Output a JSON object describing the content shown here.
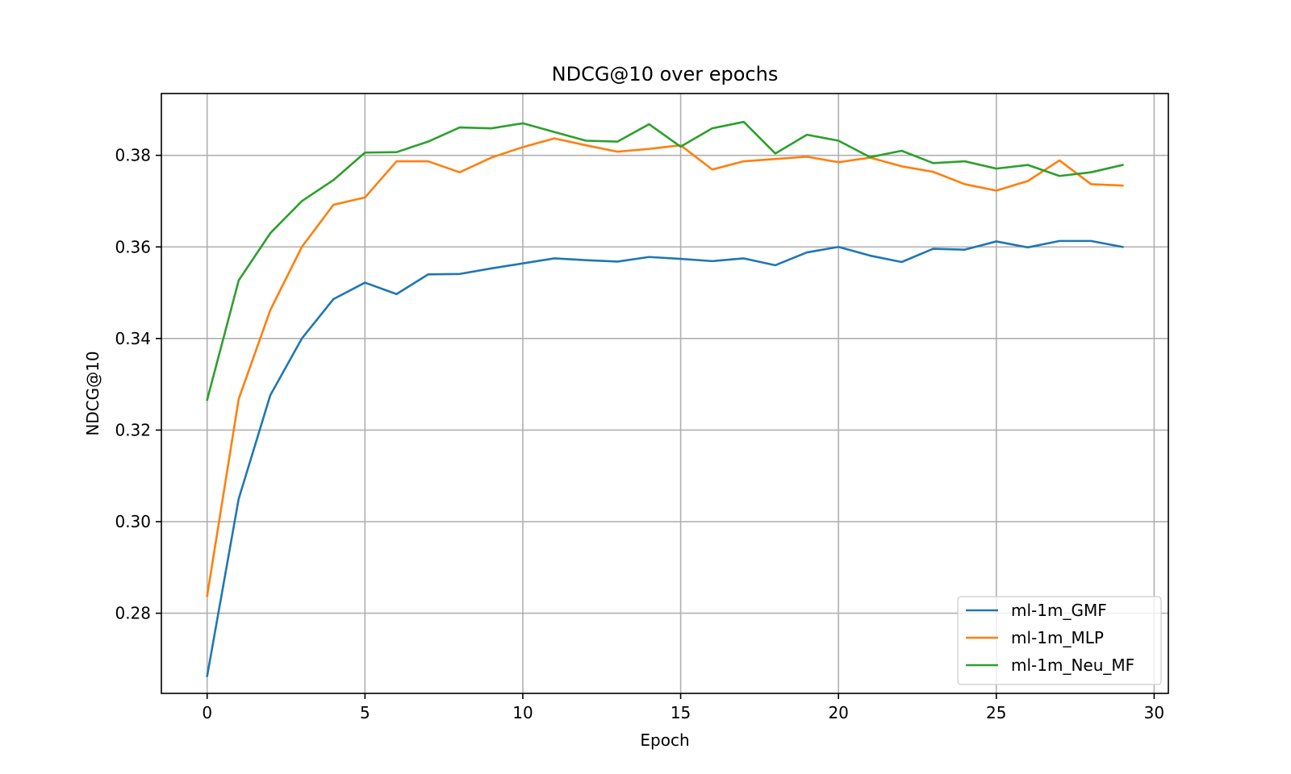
{
  "chart_data": {
    "type": "line",
    "title": "NDCG@10 over epochs",
    "xlabel": "Epoch",
    "ylabel": "NDCG@10",
    "xlim": [
      -1.45,
      30.45
    ],
    "ylim": [
      0.2625,
      0.3935
    ],
    "xticks": [
      0,
      5,
      10,
      15,
      20,
      25,
      30
    ],
    "yticks": [
      0.28,
      0.3,
      0.32,
      0.34,
      0.36,
      0.38
    ],
    "ytick_labels": [
      "0.28",
      "0.30",
      "0.32",
      "0.34",
      "0.36",
      "0.38"
    ],
    "grid": true,
    "legend_position": "lower-right",
    "x": [
      0,
      1,
      2,
      3,
      4,
      5,
      6,
      7,
      8,
      9,
      10,
      11,
      12,
      13,
      14,
      15,
      16,
      17,
      18,
      19,
      20,
      21,
      22,
      23,
      24,
      25,
      26,
      27,
      28,
      29
    ],
    "series": [
      {
        "name": "ml-1m_GMF",
        "color": "#1f77b4",
        "values": [
          0.2663,
          0.305,
          0.3276,
          0.34,
          0.3486,
          0.3522,
          0.3497,
          0.354,
          0.3541,
          0.3553,
          0.3564,
          0.3575,
          0.3571,
          0.3568,
          0.3578,
          0.3574,
          0.3569,
          0.3575,
          0.356,
          0.3588,
          0.36,
          0.3581,
          0.3567,
          0.3596,
          0.3594,
          0.3612,
          0.3599,
          0.3613,
          0.3613,
          0.36
        ]
      },
      {
        "name": "ml-1m_MLP",
        "color": "#ff7f0e",
        "values": [
          0.2838,
          0.3268,
          0.3462,
          0.36,
          0.3692,
          0.3708,
          0.3787,
          0.3787,
          0.3763,
          0.3795,
          0.3818,
          0.3837,
          0.3822,
          0.3808,
          0.3814,
          0.3822,
          0.3769,
          0.3787,
          0.3792,
          0.3797,
          0.3785,
          0.3795,
          0.3776,
          0.3764,
          0.3737,
          0.3723,
          0.3744,
          0.3789,
          0.3737,
          0.3734
        ]
      },
      {
        "name": "ml-1m_Neu_MF",
        "color": "#2ca02c",
        "values": [
          0.3266,
          0.3527,
          0.363,
          0.37,
          0.3746,
          0.3806,
          0.3807,
          0.383,
          0.3861,
          0.3859,
          0.387,
          0.3851,
          0.3832,
          0.383,
          0.3868,
          0.3819,
          0.3859,
          0.3873,
          0.3804,
          0.3845,
          0.3832,
          0.3796,
          0.381,
          0.3783,
          0.3787,
          0.3771,
          0.3779,
          0.3755,
          0.3763,
          0.3779
        ]
      }
    ]
  }
}
